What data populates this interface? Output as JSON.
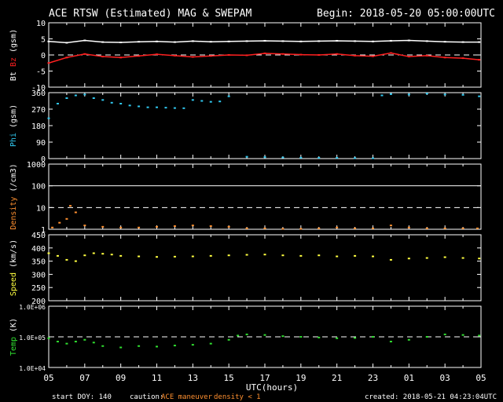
{
  "header": {
    "title": "ACE RTSW (Estimated) MAG & SWEPAM",
    "begin": "Begin: 2018-05-20 05:00:00UTC"
  },
  "footer": {
    "start_doy": "start DOY: 140",
    "caution": "caution:",
    "maneuver": "ACE maneuver",
    "density_note": "density < 1",
    "created": "created: 2018-05-21 04:23:04UTC"
  },
  "colors": {
    "bt": "#ffffff",
    "bz": "#ff2020",
    "phi": "#30c8f0",
    "density": "#ff9030",
    "speed": "#ffff40",
    "temp": "#30e030",
    "maneuver": "#ff9030"
  },
  "chart_data": [
    {
      "type": "line",
      "panel": "mag",
      "ylabel_parts": [
        "Bt",
        "Bz",
        "(gsm)"
      ],
      "ylim": [
        -10,
        10
      ],
      "yticks": [
        10,
        5,
        0,
        -5,
        -10
      ],
      "ref_lines": [
        {
          "value": 0,
          "style": "dashed"
        }
      ],
      "series": [
        {
          "name": "Bt",
          "color": "#ffffff",
          "x": [
            5,
            6,
            7,
            8,
            9,
            10,
            11,
            12,
            13,
            14,
            15,
            16,
            17,
            18,
            19,
            20,
            21,
            22,
            23,
            24,
            25,
            26,
            27,
            28,
            28.9
          ],
          "y": [
            4.2,
            3.8,
            4.5,
            4.0,
            3.9,
            4.1,
            4.2,
            4.0,
            4.3,
            4.1,
            4.2,
            4.3,
            4.4,
            4.3,
            4.2,
            4.3,
            4.4,
            4.3,
            4.2,
            4.4,
            4.5,
            4.3,
            4.1,
            4.0,
            4.0
          ]
        },
        {
          "name": "Bz",
          "color": "#ff2020",
          "x": [
            5,
            6,
            7,
            8,
            9,
            10,
            11,
            12,
            13,
            14,
            15,
            16,
            17,
            18,
            19,
            20,
            21,
            22,
            23,
            24,
            25,
            26,
            27,
            28,
            28.9
          ],
          "y": [
            -2.5,
            -0.8,
            0.3,
            -0.5,
            -0.8,
            -0.3,
            0.2,
            -0.2,
            -0.6,
            -0.3,
            0.0,
            -0.1,
            0.5,
            0.3,
            0.1,
            0.0,
            0.3,
            -0.2,
            -0.4,
            0.6,
            -0.5,
            -0.2,
            -0.8,
            -1.0,
            -1.5
          ]
        }
      ]
    },
    {
      "type": "scatter",
      "panel": "phi",
      "ylabel_parts": [
        "Phi",
        "(gsm)"
      ],
      "ylim": [
        0,
        360
      ],
      "yticks": [
        360,
        270,
        180,
        90,
        0
      ],
      "series": [
        {
          "name": "Phi",
          "color": "#30c8f0",
          "x": [
            5,
            5.5,
            6,
            6.5,
            7,
            7.5,
            8,
            8.5,
            9,
            9.5,
            10,
            10.5,
            11,
            11.5,
            12,
            12.5,
            13,
            13.5,
            14,
            14.5,
            15,
            16,
            17,
            18,
            19,
            20,
            21,
            22,
            23,
            23.5,
            24,
            25,
            26,
            27,
            28,
            28.9
          ],
          "y": [
            220,
            300,
            330,
            345,
            350,
            330,
            320,
            305,
            300,
            290,
            285,
            280,
            280,
            278,
            276,
            275,
            320,
            315,
            310,
            312,
            340,
            10,
            8,
            6,
            5,
            4,
            4,
            3,
            2,
            345,
            352,
            350,
            355,
            350,
            348,
            340
          ]
        }
      ]
    },
    {
      "type": "scatter",
      "panel": "density",
      "ylabel_parts": [
        "Density",
        "(/cm3)"
      ],
      "yscale": "log",
      "ylim": [
        1,
        1000
      ],
      "yticks": [
        1000,
        100,
        10,
        1
      ],
      "ref_lines": [
        {
          "value": 100,
          "style": "solid"
        },
        {
          "value": 10,
          "style": "dashed"
        }
      ],
      "series": [
        {
          "name": "Density",
          "color": "#ff9030",
          "x": [
            5.2,
            5.6,
            6.0,
            6.2,
            6.5,
            7,
            8,
            9,
            10,
            11,
            12,
            13,
            14,
            15,
            16,
            17,
            18,
            19,
            20,
            21,
            22,
            23,
            24,
            25,
            26,
            27,
            28,
            28.8
          ],
          "y": [
            1.2,
            2,
            3,
            12,
            6,
            1.5,
            1.3,
            1.2,
            1.2,
            1.3,
            1.4,
            1.5,
            1.4,
            1.3,
            1.1,
            1.1,
            1.05,
            1.05,
            1.1,
            1.2,
            1.1,
            1.1,
            1.5,
            1.2,
            1.1,
            1.1,
            1.1,
            1.1
          ]
        }
      ]
    },
    {
      "type": "scatter",
      "panel": "speed",
      "ylabel_parts": [
        "Speed",
        "(km/s)"
      ],
      "ylim": [
        200,
        450
      ],
      "yticks": [
        450,
        400,
        350,
        300,
        250,
        200
      ],
      "series": [
        {
          "name": "Speed",
          "color": "#ffff40",
          "x": [
            5,
            5.5,
            6,
            6.5,
            7,
            7.5,
            8,
            8.5,
            9,
            10,
            11,
            12,
            13,
            14,
            15,
            16,
            17,
            18,
            19,
            20,
            21,
            22,
            23,
            24,
            25,
            26,
            27,
            28,
            28.9
          ],
          "y": [
            380,
            370,
            355,
            350,
            372,
            380,
            378,
            375,
            370,
            368,
            366,
            367,
            368,
            370,
            372,
            374,
            375,
            372,
            370,
            372,
            368,
            370,
            368,
            355,
            360,
            362,
            365,
            362,
            360
          ]
        }
      ]
    },
    {
      "type": "scatter",
      "panel": "temp",
      "ylabel_parts": [
        "Temp",
        "(K)"
      ],
      "yscale": "log",
      "ylim": [
        10000,
        1000000
      ],
      "yticks": [
        "1.0E+06",
        "1.0E+05",
        "1.0E+04"
      ],
      "ref_lines": [
        {
          "value": 100000,
          "style": "dashed"
        }
      ],
      "series": [
        {
          "name": "Temp",
          "color": "#30e030",
          "x": [
            5,
            5.5,
            6,
            6.5,
            7,
            7.5,
            8,
            9,
            10,
            11,
            12,
            13,
            14,
            15,
            15.5,
            16,
            17,
            18,
            19,
            20,
            21,
            22,
            23,
            24,
            25,
            26,
            27,
            28,
            28.9
          ],
          "y": [
            90000,
            70000,
            60000,
            70000,
            80000,
            65000,
            50000,
            45000,
            50000,
            48000,
            52000,
            55000,
            60000,
            80000,
            110000,
            120000,
            115000,
            105000,
            100000,
            95000,
            90000,
            92000,
            100000,
            70000,
            80000,
            100000,
            120000,
            115000,
            110000
          ]
        }
      ]
    }
  ],
  "xaxis": {
    "label": "UTC(hours)",
    "xlim": [
      5,
      29
    ],
    "tick_labels": [
      "05",
      "07",
      "09",
      "11",
      "13",
      "15",
      "17",
      "19",
      "21",
      "23",
      "01",
      "03",
      "05"
    ]
  }
}
